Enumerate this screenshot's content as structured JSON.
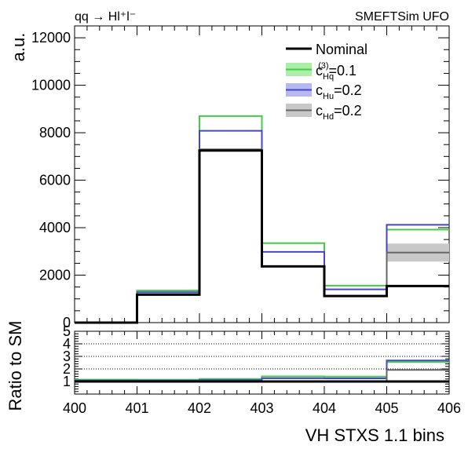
{
  "chart_data": [
    {
      "type": "histogram",
      "process_label": "qq → Hl⁺l⁻",
      "model_label": "SMEFTSim UFO",
      "ylabel": "a.u.",
      "xlabel": "",
      "bin_edges": [
        400,
        401,
        402,
        403,
        404,
        405,
        406
      ],
      "xlim": [
        400,
        406
      ],
      "ylim": [
        0,
        12500
      ],
      "yticks": [
        0,
        2000,
        4000,
        6000,
        8000,
        10000,
        12000
      ],
      "series": [
        {
          "name": "Nominal",
          "color": "#000000",
          "values": [
            0,
            1180,
            7250,
            2370,
            1120,
            1540
          ]
        },
        {
          "name_prefix": "c",
          "name_sub": "Hq",
          "name_sup": "(3)",
          "name_suffix": "=0.1",
          "color": "#44cc44",
          "band_color": "#aaeeaa",
          "values": [
            0,
            1350,
            8700,
            3350,
            1560,
            3920
          ]
        },
        {
          "name_prefix": "c",
          "name_sub": "Hu",
          "name_sup": "",
          "name_suffix": "=0.2",
          "color": "#4444cc",
          "band_color": "#b8b8f0",
          "values": [
            0,
            1280,
            8080,
            2980,
            1400,
            4120
          ]
        },
        {
          "name_prefix": "c",
          "name_sub": "Hd",
          "name_sup": "",
          "name_suffix": "=0.2",
          "color": "#666666",
          "band_color": "#c8c8c8",
          "values": [
            0,
            1200,
            7300,
            2380,
            1130,
            2950
          ]
        }
      ]
    },
    {
      "type": "ratio",
      "ylabel": "Ratio to SM",
      "xlabel": "VH STXS 1.1 bins",
      "xlim": [
        400,
        406
      ],
      "ylim": [
        0,
        5
      ],
      "yticks": [
        1,
        2,
        3,
        4,
        5
      ],
      "xticks": [
        400,
        401,
        402,
        403,
        404,
        405,
        406
      ],
      "gridlines": [
        1,
        2,
        3,
        4
      ],
      "ratios": [
        {
          "series": "Nominal",
          "values": [
            1,
            1,
            1,
            1,
            1,
            1
          ]
        },
        {
          "series": "cHq3",
          "values": [
            1.15,
            1.14,
            1.2,
            1.41,
            1.39,
            2.55
          ]
        },
        {
          "series": "cHu",
          "values": [
            1.08,
            1.08,
            1.11,
            1.26,
            1.25,
            2.67
          ]
        },
        {
          "series": "cHd",
          "values": [
            1.01,
            1.02,
            1.01,
            1.0,
            1.01,
            1.92
          ]
        }
      ]
    }
  ]
}
